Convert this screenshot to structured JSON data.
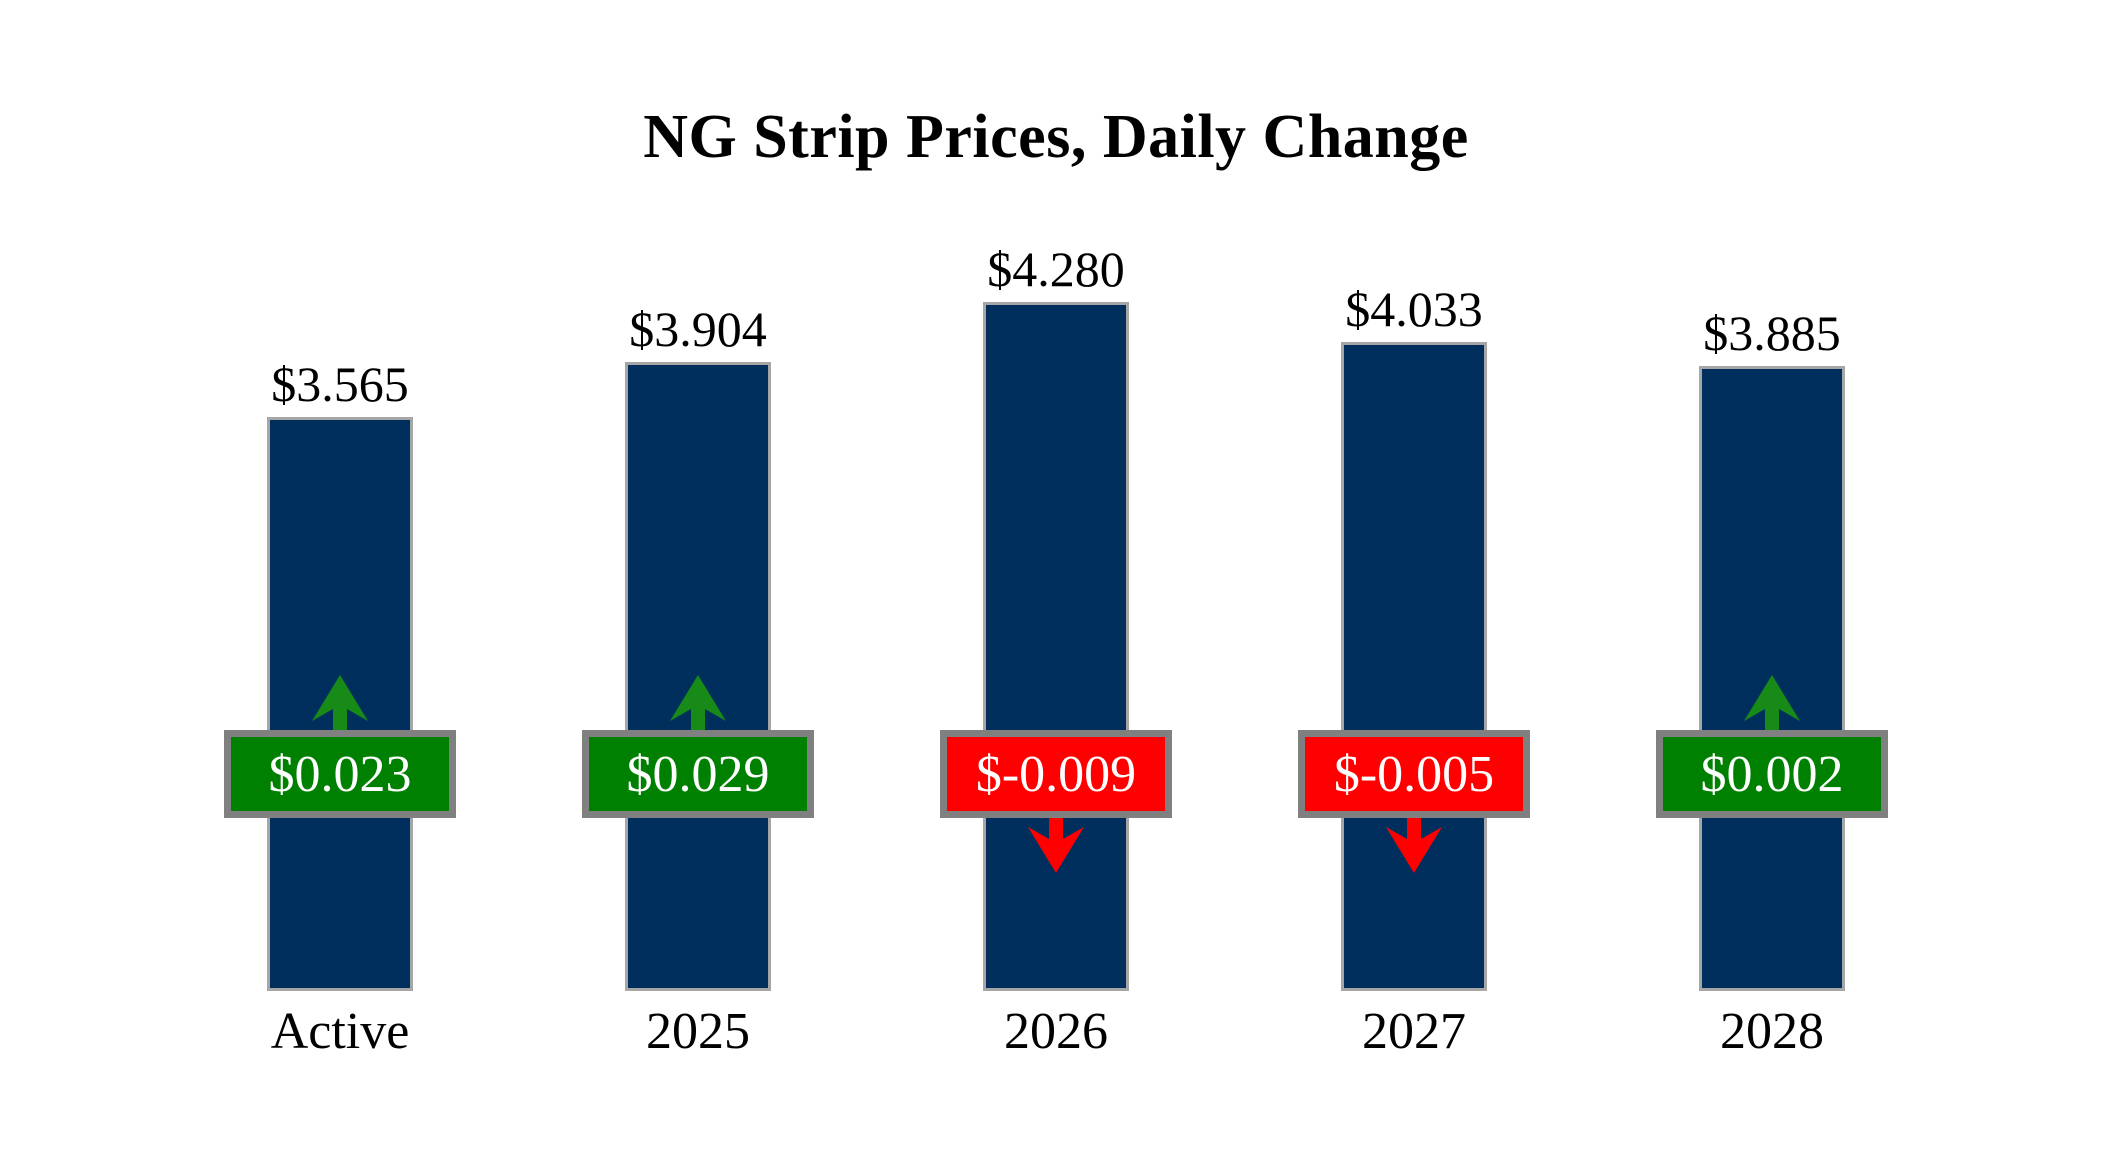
{
  "title": "NG Strip Prices, Daily Change",
  "colors": {
    "background": "#ffffff",
    "bar_fill": "#002f5e",
    "bar_border": "#a6a6a6",
    "badge_border": "#808080",
    "badge_text": "#ffffff",
    "positive_badge": "#008000",
    "negative_badge": "#ff0000",
    "up_arrow": "#178a17",
    "down_arrow": "#ff0000",
    "label_text": "#000000"
  },
  "chart_data": {
    "type": "bar",
    "title": "NG Strip Prices, Daily Change",
    "xlabel": "",
    "ylabel": "",
    "ylim": [
      0,
      4.6
    ],
    "grid": false,
    "legend": false,
    "categories": [
      "Active",
      "2025",
      "2026",
      "2027",
      "2028"
    ],
    "values": [
      3.565,
      3.904,
      4.28,
      4.033,
      3.885
    ],
    "price_labels": [
      "$3.565",
      "$3.904",
      "$4.280",
      "$4.033",
      "$3.885"
    ],
    "changes": [
      0.023,
      0.029,
      -0.009,
      -0.005,
      0.002
    ],
    "change_labels": [
      "$0.023",
      "$0.029",
      "$-0.009",
      "$-0.005",
      "$0.002"
    ],
    "change_directions": [
      "up",
      "up",
      "down",
      "down",
      "up"
    ]
  }
}
